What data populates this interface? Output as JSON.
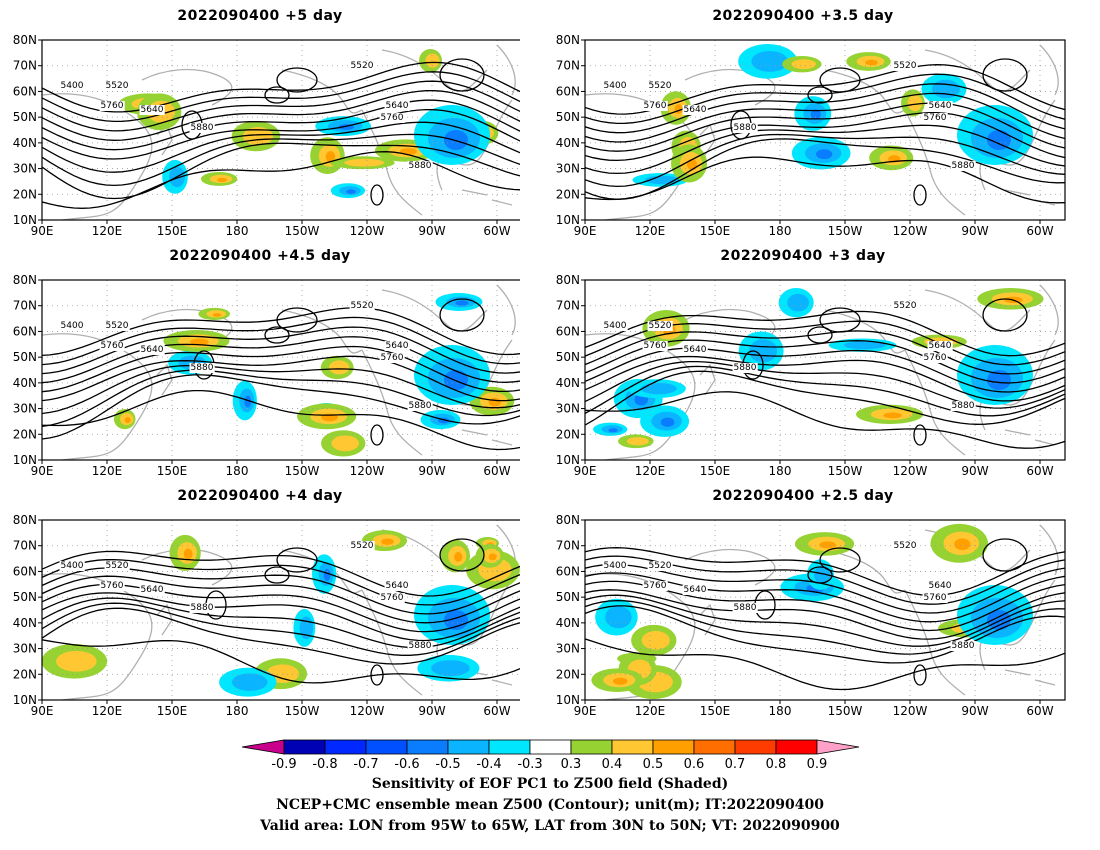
{
  "panels": [
    {
      "title": "2022090400  +5 day"
    },
    {
      "title": "2022090400  +3.5 day"
    },
    {
      "title": "2022090400  +4.5 day"
    },
    {
      "title": "2022090400  +3 day"
    },
    {
      "title": "2022090400  +4 day"
    },
    {
      "title": "2022090400  +2.5 day"
    }
  ],
  "map": {
    "lat_labels": [
      "80N",
      "70N",
      "60N",
      "50N",
      "40N",
      "30N",
      "20N",
      "10N"
    ],
    "lon_labels": [
      "90E",
      "120E",
      "150E",
      "180",
      "150W",
      "120W",
      "90W",
      "60W"
    ],
    "lon_range": [
      "90E",
      "50W"
    ],
    "lat_range": [
      "10N",
      "80N"
    ],
    "contour_levels": [
      "5400",
      "5520",
      "5640",
      "5760",
      "5880"
    ],
    "land_color": "#b0b0b0",
    "contour_color": "#000000"
  },
  "colorbar": {
    "tick_labels": [
      "-0.9",
      "-0.8",
      "-0.7",
      "-0.6",
      "-0.5",
      "-0.4",
      "-0.3",
      "0.3",
      "0.4",
      "0.5",
      "0.6",
      "0.7",
      "0.8",
      "0.9"
    ],
    "colors": [
      "#c8008c",
      "#0000b4",
      "#0028ff",
      "#0050ff",
      "#0a7dff",
      "#0ab4ff",
      "#00e6ff",
      "#ffffff",
      "#96d232",
      "#ffc832",
      "#ffa000",
      "#ff6e00",
      "#ff3c00",
      "#ff0000",
      "#ffa0c8"
    ]
  },
  "captions": {
    "line1": "Sensitivity of EOF PC1 to Z500 field (Shaded)",
    "line2": "NCEP+CMC ensemble mean Z500 (Contour); unit(m); IT:2022090400",
    "line3": "Valid area: LON from 95W to 65W, LAT from 30N to 50N; VT: 2022090900"
  }
}
